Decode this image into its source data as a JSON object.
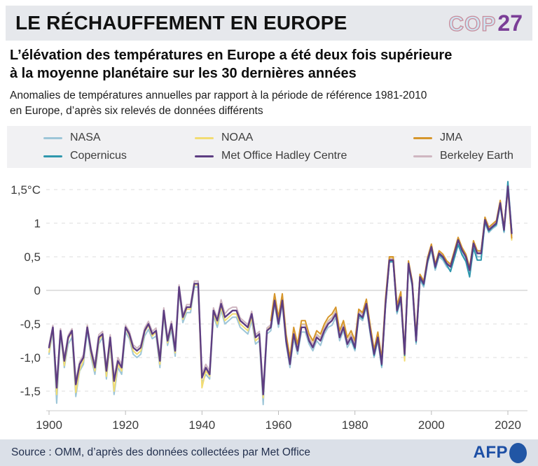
{
  "header": {
    "title": "LE RÉCHAUFFEMENT EN EUROPE",
    "logo_cop": "COP",
    "logo_27": "27"
  },
  "headline": {
    "line1": "L’élévation des températures en Europe a été deux fois supérieure",
    "line2": "à la moyenne planétaire sur les 30 dernières années"
  },
  "description": {
    "line1": "Anomalies de températures annuelles par rapport à la période de référence 1981-2010",
    "line2": "en Europe, d’après six relevés de données différents"
  },
  "colors": {
    "header_band": "#e6e8ec",
    "legend_box": "#f1f1f3",
    "footer_band": "#dbe0e8",
    "cop_fill": "#cfe4f0",
    "cop_stroke": "#c98b9b",
    "cop27_purple": "#7b3e97",
    "afp_blue": "#2156a5"
  },
  "chart_data": {
    "type": "line",
    "title": "Anomalies de températures annuelles en Europe (référence 1981-2010)",
    "xlabel": "",
    "ylabel": "°C",
    "grid": "dashed horizontal",
    "legend_position": "top box, 3 columns",
    "x_start_year": 1900,
    "x_end_year": 2021,
    "x_ticks": [
      1900,
      1920,
      1940,
      1960,
      1980,
      2000,
      2020
    ],
    "y_ticks": [
      {
        "label": "1,5°C",
        "value": 1.5
      },
      {
        "label": "1",
        "value": 1
      },
      {
        "label": "0,5",
        "value": 0.5
      },
      {
        "label": "0",
        "value": 0
      },
      {
        "label": "-0,5",
        "value": -0.5
      },
      {
        "label": "-1,0",
        "value": -1
      },
      {
        "label": "-1,5",
        "value": -1.5
      }
    ],
    "ylim": [
      -1.8,
      1.7
    ],
    "series": [
      {
        "name": "NASA",
        "color": "#9dc6d8",
        "start_year": 1900,
        "values": [
          -0.95,
          -0.6,
          -1.68,
          -0.65,
          -1.15,
          -0.8,
          -0.7,
          -1.58,
          -1.2,
          -1.1,
          -0.6,
          -1.0,
          -1.25,
          -0.8,
          -0.7,
          -1.32,
          -0.8,
          -1.55,
          -1.15,
          -1.25,
          -0.62,
          -0.72,
          -0.95,
          -1.0,
          -0.95,
          -0.68,
          -0.58,
          -0.72,
          -0.68,
          -1.15,
          -0.38,
          -0.82,
          -0.58,
          -0.98,
          0.0,
          -0.48,
          -0.33,
          -0.33,
          0.05,
          0.05,
          -1.38,
          -1.25,
          -1.32,
          -0.38,
          -0.55,
          -0.3,
          -0.5,
          -0.45,
          -0.4,
          -0.4,
          -0.55,
          -0.6,
          -0.65,
          -0.45,
          -0.8,
          -0.75,
          -1.7,
          -0.65,
          -0.6,
          -0.2,
          -0.55,
          -0.2,
          -0.8,
          -1.15,
          -0.72,
          -0.95,
          -0.62,
          -0.62,
          -0.8,
          -0.9,
          -0.75,
          -0.82,
          -0.65,
          -0.55,
          -0.52,
          -0.4,
          -0.75,
          -0.6,
          -0.85,
          -0.75,
          -0.9,
          -0.4,
          -0.45,
          -0.25,
          -0.65,
          -1.0,
          -0.75,
          -1.15,
          -0.25,
          0.42,
          0.42,
          -0.35,
          -0.15,
          -1.0,
          0.36,
          0.05,
          -0.8,
          0.15,
          0.05,
          0.4,
          0.6,
          0.3,
          0.5,
          0.45,
          0.35,
          0.3,
          0.5,
          0.7,
          0.55,
          0.45,
          0.25,
          0.65,
          0.5,
          0.5,
          1.0,
          0.86,
          0.92,
          0.96,
          1.26,
          0.86,
          1.52,
          0.82
        ]
      },
      {
        "name": "NOAA",
        "color": "#f2dc72",
        "start_year": 1900,
        "values": [
          -0.92,
          -0.55,
          -1.55,
          -0.6,
          -1.12,
          -0.72,
          -0.62,
          -1.52,
          -1.18,
          -1.05,
          -0.52,
          -0.95,
          -1.2,
          -0.75,
          -0.65,
          -1.28,
          -0.75,
          -1.5,
          -1.1,
          -1.2,
          -0.55,
          -0.68,
          -0.9,
          -0.95,
          -0.9,
          -0.62,
          -0.52,
          -0.68,
          -0.62,
          -1.1,
          -0.33,
          -0.78,
          -0.52,
          -0.93,
          0.03,
          -0.43,
          -0.28,
          -0.28,
          0.08,
          0.08,
          -1.45,
          -1.2,
          -1.28,
          -0.33,
          -0.5,
          -0.25,
          -0.45,
          -0.4,
          -0.35,
          -0.35,
          -0.5,
          -0.55,
          -0.6,
          -0.4,
          -0.75,
          -0.7,
          -1.6,
          -0.6,
          -0.52,
          -0.1,
          -0.45,
          -0.1,
          -0.7,
          -1.05,
          -0.6,
          -0.85,
          -0.5,
          -0.5,
          -0.7,
          -0.8,
          -0.65,
          -0.7,
          -0.55,
          -0.45,
          -0.4,
          -0.3,
          -0.65,
          -0.5,
          -0.75,
          -0.65,
          -0.8,
          -0.3,
          -0.35,
          -0.15,
          -0.55,
          -0.9,
          -0.65,
          -1.05,
          -0.15,
          0.48,
          0.48,
          -0.25,
          -0.05,
          -1.05,
          0.42,
          0.12,
          -0.7,
          0.22,
          0.12,
          0.47,
          0.67,
          0.37,
          0.57,
          0.52,
          0.42,
          0.37,
          0.57,
          0.77,
          0.62,
          0.52,
          0.32,
          0.72,
          0.57,
          0.57,
          1.07,
          0.92,
          0.97,
          1.02,
          1.32,
          0.92,
          1.5,
          0.75
        ]
      },
      {
        "name": "JMA",
        "color": "#d6962c",
        "start_year": 1958,
        "values": [
          -0.45,
          -0.05,
          -0.4,
          -0.05,
          -0.65,
          -1.0,
          -0.55,
          -0.8,
          -0.45,
          -0.45,
          -0.65,
          -0.75,
          -0.6,
          -0.65,
          -0.5,
          -0.4,
          -0.35,
          -0.25,
          -0.6,
          -0.45,
          -0.7,
          -0.6,
          -0.75,
          -0.28,
          -0.33,
          -0.13,
          -0.52,
          -0.88,
          -0.62,
          -1.02,
          -0.12,
          0.5,
          0.5,
          -0.22,
          -0.02,
          -0.9,
          0.44,
          0.14,
          -0.68,
          0.24,
          0.14,
          0.49,
          0.69,
          0.39,
          0.59,
          0.54,
          0.44,
          0.39,
          0.59,
          0.79,
          0.64,
          0.54,
          0.34,
          0.74,
          0.59,
          0.59,
          1.09,
          0.94,
          0.99,
          1.04,
          1.34,
          0.94,
          1.52,
          0.78
        ]
      },
      {
        "name": "Copernicus",
        "color": "#2f97ad",
        "start_year": 1979,
        "values": [
          -0.72,
          -0.87,
          -0.37,
          -0.42,
          -0.22,
          -0.62,
          -0.97,
          -0.72,
          -1.12,
          -0.22,
          0.43,
          0.43,
          -0.32,
          -0.12,
          -0.97,
          0.38,
          0.08,
          -0.77,
          0.18,
          0.08,
          0.43,
          0.63,
          0.33,
          0.53,
          0.48,
          0.38,
          0.28,
          0.48,
          0.68,
          0.53,
          0.43,
          0.2,
          0.63,
          0.45,
          0.45,
          1.02,
          0.88,
          0.94,
          0.98,
          1.28,
          0.88,
          1.62,
          0.88
        ]
      },
      {
        "name": "Met Office Hadley Centre",
        "color": "#5d3d82",
        "start_year": 1900,
        "values": [
          -0.85,
          -0.55,
          -1.45,
          -0.6,
          -1.05,
          -0.7,
          -0.6,
          -1.4,
          -1.1,
          -1.0,
          -0.55,
          -0.9,
          -1.15,
          -0.7,
          -0.65,
          -1.2,
          -0.7,
          -1.35,
          -1.05,
          -1.15,
          -0.55,
          -0.65,
          -0.85,
          -0.9,
          -0.85,
          -0.6,
          -0.5,
          -0.65,
          -0.6,
          -1.05,
          -0.3,
          -0.75,
          -0.5,
          -0.9,
          0.05,
          -0.4,
          -0.25,
          -0.25,
          0.1,
          0.1,
          -1.3,
          -1.15,
          -1.25,
          -0.3,
          -0.45,
          -0.2,
          -0.4,
          -0.35,
          -0.3,
          -0.3,
          -0.45,
          -0.5,
          -0.55,
          -0.35,
          -0.7,
          -0.65,
          -1.55,
          -0.6,
          -0.55,
          -0.15,
          -0.5,
          -0.15,
          -0.75,
          -1.1,
          -0.65,
          -0.9,
          -0.55,
          -0.55,
          -0.75,
          -0.85,
          -0.7,
          -0.75,
          -0.6,
          -0.5,
          -0.45,
          -0.35,
          -0.7,
          -0.55,
          -0.8,
          -0.7,
          -0.85,
          -0.35,
          -0.4,
          -0.2,
          -0.6,
          -0.95,
          -0.7,
          -1.1,
          -0.2,
          0.45,
          0.45,
          -0.3,
          -0.1,
          -0.95,
          0.4,
          0.1,
          -0.75,
          0.2,
          0.1,
          0.45,
          0.65,
          0.35,
          0.55,
          0.5,
          0.4,
          0.35,
          0.55,
          0.75,
          0.6,
          0.5,
          0.3,
          0.7,
          0.55,
          0.55,
          1.05,
          0.9,
          0.95,
          1.0,
          1.3,
          0.9,
          1.55,
          0.85
        ]
      },
      {
        "name": "Berkeley Earth",
        "color": "#cfb6c1",
        "start_year": 1900,
        "values": [
          -0.82,
          -0.52,
          -1.4,
          -0.57,
          -1.0,
          -0.67,
          -0.57,
          -1.35,
          -1.06,
          -0.96,
          -0.52,
          -0.86,
          -1.1,
          -0.66,
          -0.61,
          -1.15,
          -0.66,
          -1.3,
          -1.0,
          -1.1,
          -0.52,
          -0.61,
          -0.81,
          -0.86,
          -0.81,
          -0.56,
          -0.46,
          -0.61,
          -0.56,
          -1.0,
          -0.26,
          -0.71,
          -0.46,
          -0.82,
          0.08,
          -0.36,
          -0.21,
          -0.21,
          0.14,
          0.14,
          -1.24,
          -1.1,
          -1.2,
          -0.26,
          -0.41,
          -0.14,
          -0.35,
          -0.28,
          -0.25,
          -0.25,
          -0.41,
          -0.46,
          -0.51,
          -0.31,
          -0.66,
          -0.61,
          -1.48,
          -0.56,
          -0.51,
          -0.12,
          -0.46,
          -0.12,
          -0.71,
          -1.06,
          -0.61,
          -0.86,
          -0.51,
          -0.51,
          -0.71,
          -0.81,
          -0.66,
          -0.71,
          -0.56,
          -0.46,
          -0.41,
          -0.31,
          -0.66,
          -0.51,
          -0.76,
          -0.66,
          -0.81,
          -0.31,
          -0.36,
          -0.16,
          -0.56,
          -0.91,
          -0.66,
          -1.06,
          -0.16,
          0.47,
          0.47,
          -0.26,
          -0.06,
          -0.91,
          0.42,
          0.12,
          -0.71,
          0.22,
          0.12,
          0.47,
          0.67,
          0.37,
          0.57,
          0.52,
          0.42,
          0.37,
          0.57,
          0.77,
          0.62,
          0.52,
          0.32,
          0.72,
          0.57,
          0.57,
          1.07,
          0.92,
          0.97,
          1.02,
          1.32,
          0.92,
          1.56,
          0.86
        ]
      }
    ],
    "legend_order": [
      0,
      1,
      2,
      3,
      4,
      5
    ],
    "draw_order": [
      0,
      1,
      5,
      3,
      2,
      4
    ]
  },
  "footer": {
    "source": "Source : OMM, d’après des données collectées par Met Office",
    "logo_text": "AFP"
  }
}
